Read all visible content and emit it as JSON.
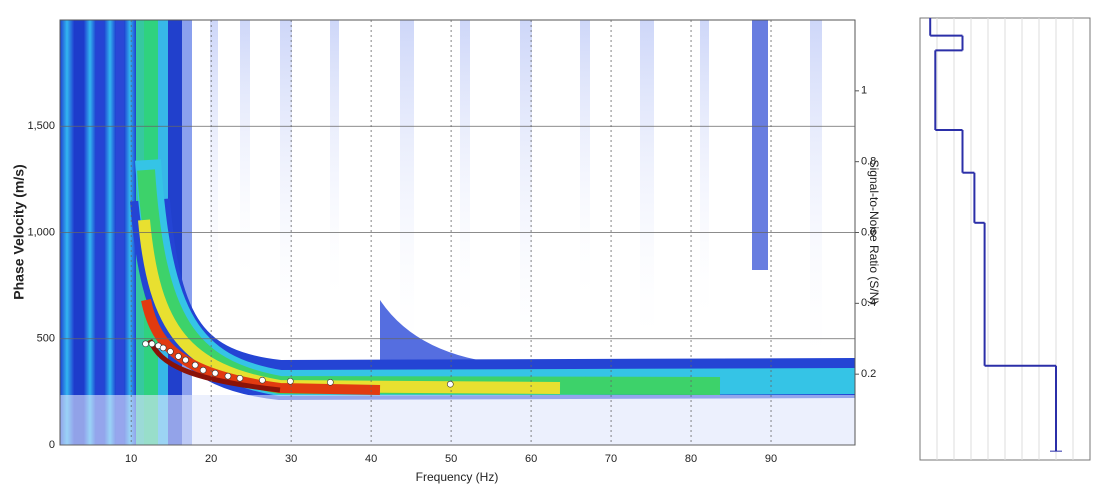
{
  "chart_data": [
    {
      "type": "dispersion",
      "x_label": "Frequency (Hz)",
      "y_label": "Phase Velocity (m/s)",
      "y2_label": "Signal-to-Noise Ratio (S/N)",
      "x": [
        11.8,
        12.6,
        13.4,
        14.0,
        14.9,
        15.9,
        16.8,
        18.0,
        19.0,
        20.5,
        22.1,
        23.6,
        26.4,
        29.9,
        34.9,
        49.9
      ],
      "values": [
        476,
        476,
        467,
        457,
        440,
        417,
        400,
        376,
        352,
        338,
        324,
        314,
        305,
        300,
        295,
        286
      ],
      "point_color": "#ffffff",
      "xlim": [
        1.1,
        100.5
      ],
      "xticks": [
        10,
        20,
        30,
        40,
        50,
        60,
        70,
        80,
        90
      ],
      "ylim": [
        0,
        2000
      ],
      "yticks": [
        0,
        500,
        {
          "value": 1000,
          "label": "1,000"
        },
        {
          "value": 1500,
          "label": "1,500"
        }
      ],
      "y2lim": [
        0,
        1.2
      ],
      "y2ticks": [
        0.2,
        0.4,
        0.6,
        0.8,
        1
      ],
      "grid": true
    },
    {
      "type": "step",
      "depth_tops": [
        0,
        1.2,
        2.2,
        7.6,
        10.5,
        13.9,
        23.6
      ],
      "values": [
        60,
        250,
        90,
        250,
        320,
        380,
        800
      ],
      "depth_bottom": 29.4,
      "color": "#2b2fa8",
      "xlim": [
        0,
        1000
      ],
      "ylim": [
        0,
        30
      ]
    }
  ]
}
